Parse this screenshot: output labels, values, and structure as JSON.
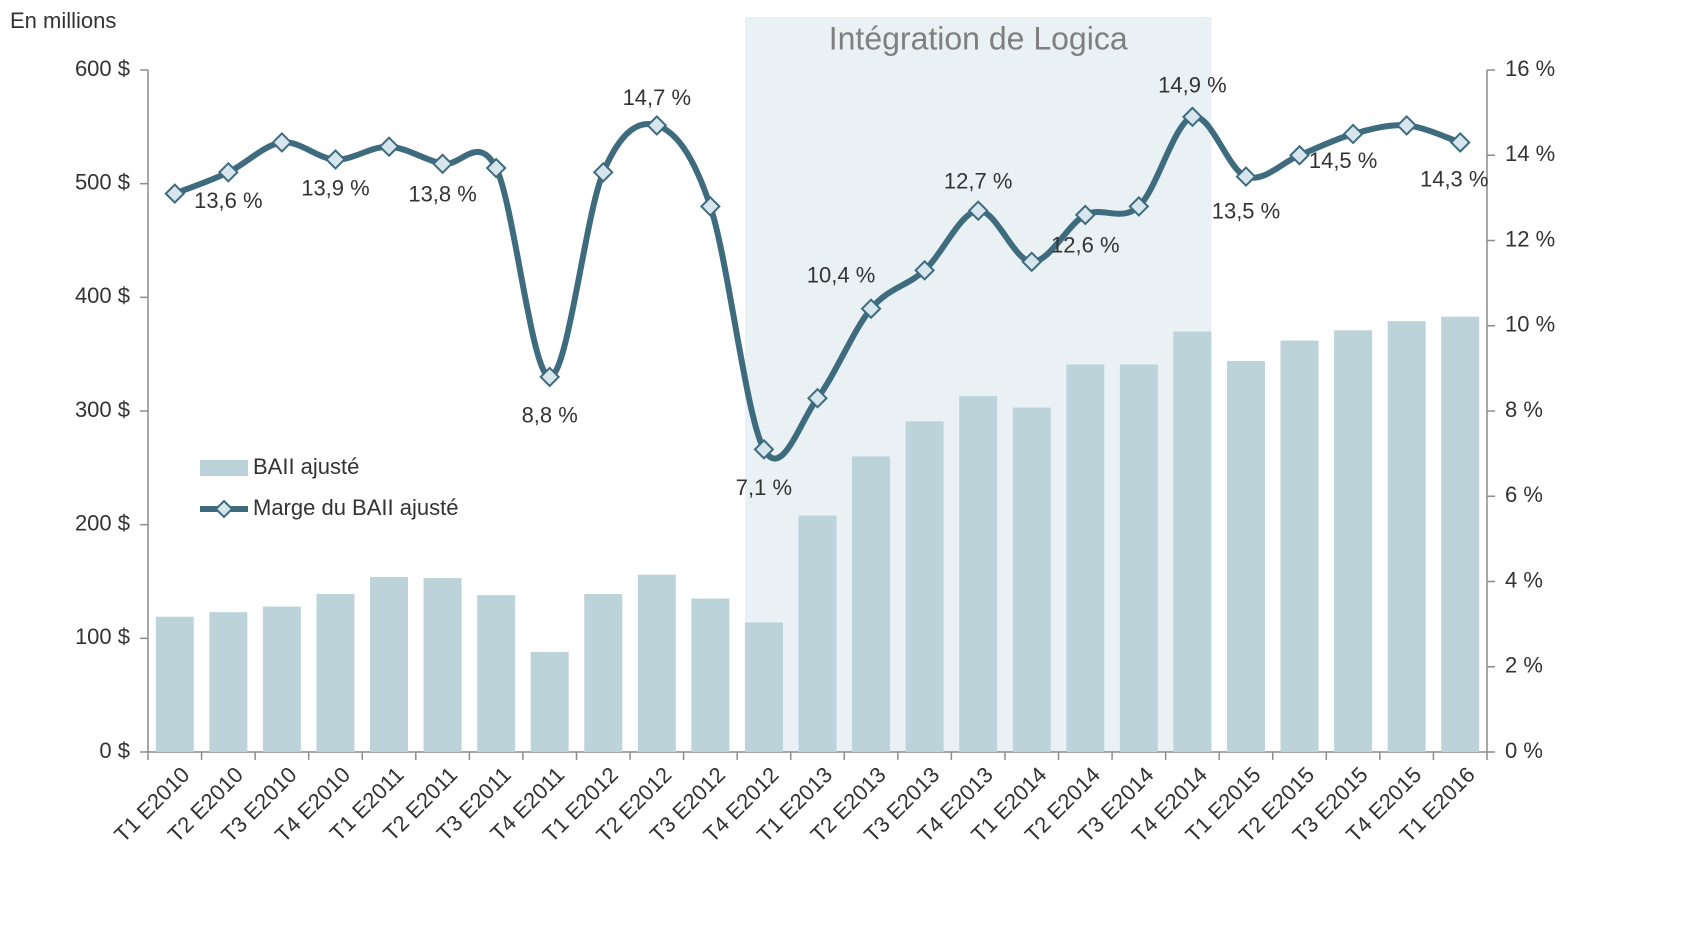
{
  "chart_data": {
    "type": "bar_line",
    "axis_title": "En millions",
    "annotation": "Intégration de Logica",
    "categories": [
      "T1 E2010",
      "T2 E2010",
      "T3 E2010",
      "T4 E2010",
      "T1 E2011",
      "T2 E2011",
      "T3 E2011",
      "T4 E2011",
      "T1 E2012",
      "T2 E2012",
      "T3 E2012",
      "T4 E2012",
      "T1 E2013",
      "T2 E2013",
      "T3 E2013",
      "T4 E2013",
      "T1 E2014",
      "T2 E2014",
      "T3 E2014",
      "T4 E2014",
      "T1 E2015",
      "T2 E2015",
      "T3 E2015",
      "T4 E2015",
      "T1 E2016"
    ],
    "series": [
      {
        "name": "BAII ajusté",
        "color": "#bcd3da",
        "type": "bar",
        "values": [
          119,
          123,
          128,
          139,
          154,
          153,
          138,
          88,
          139,
          156,
          135,
          114,
          208,
          260,
          291,
          313,
          303,
          341,
          341,
          370,
          344,
          362,
          371,
          379,
          383
        ]
      },
      {
        "name": "Marge du BAII ajusté",
        "color": "#3e6b7d",
        "type": "line",
        "axis": "y2",
        "values": [
          13.1,
          13.6,
          14.3,
          13.9,
          14.2,
          13.8,
          13.7,
          8.8,
          13.6,
          14.7,
          12.8,
          7.1,
          8.3,
          10.4,
          11.3,
          12.7,
          11.5,
          12.6,
          12.8,
          14.9,
          13.5,
          14.0,
          14.5,
          14.7,
          14.3
        ],
        "value_labels": [
          null,
          "13,6 %",
          null,
          "13,9 %",
          null,
          "13,8 %",
          null,
          "8,8 %",
          null,
          "14,7 %",
          null,
          "7,1 %",
          null,
          "10,4 %",
          null,
          "12,7 %",
          null,
          "12,6 %",
          null,
          "14,9 %",
          "13,5 %",
          null,
          "14,5 %",
          null,
          "14,3 %"
        ]
      }
    ],
    "ylim": [
      0,
      600
    ],
    "yticks": [
      {
        "value": 0,
        "label": "0 $"
      },
      {
        "value": 100,
        "label": "100 $"
      },
      {
        "value": 200,
        "label": "200 $"
      },
      {
        "value": 300,
        "label": "300 $"
      },
      {
        "value": 400,
        "label": "400 $"
      },
      {
        "value": 500,
        "label": "500 $"
      },
      {
        "value": 600,
        "label": "600 $"
      }
    ],
    "y2lim": [
      0,
      16
    ],
    "y2ticks": [
      {
        "value": 0,
        "label": "0 %"
      },
      {
        "value": 2,
        "label": "2 %"
      },
      {
        "value": 4,
        "label": "4 %"
      },
      {
        "value": 6,
        "label": "6 %"
      },
      {
        "value": 8,
        "label": "8 %"
      },
      {
        "value": 10,
        "label": "10 %"
      },
      {
        "value": 12,
        "label": "12 %"
      },
      {
        "value": 14,
        "label": "14 %"
      },
      {
        "value": 16,
        "label": "16 %"
      }
    ]
  }
}
